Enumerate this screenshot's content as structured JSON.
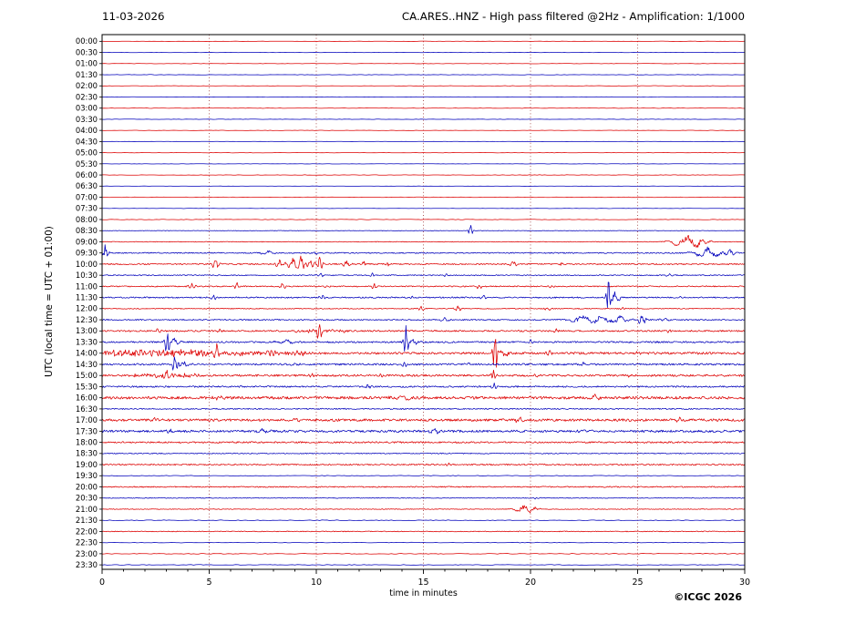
{
  "footer": {
    "credit": "©ICGC 2026"
  },
  "chart_data": {
    "type": "line",
    "subtype": "helicorder-seismogram",
    "date": "11-03-2026",
    "title": "CA.ARES..HNZ - High pass filtered @2Hz - Amplification: 1/1000",
    "xlabel": "time in minutes",
    "ylabel": "UTC (local time = UTC + 01:00)",
    "x_range": [
      0,
      30
    ],
    "x_ticks": [
      0,
      5,
      10,
      15,
      20,
      25,
      30
    ],
    "x_minor_tick_step": 1,
    "row_interval_minutes": 30,
    "grid": {
      "vertical_lines_at_minutes": [
        5,
        10,
        15,
        20,
        25
      ],
      "style": "dotted",
      "color": "#993333"
    },
    "colors": {
      "r": "#dd0000",
      "b": "#0000bb"
    },
    "amplitude_unit": "row_spacing",
    "rows": [
      {
        "t": "00:00",
        "c": "r",
        "n": 0.018
      },
      {
        "t": "00:30",
        "c": "b",
        "n": 0.015
      },
      {
        "t": "01:00",
        "c": "r",
        "n": 0.018
      },
      {
        "t": "01:30",
        "c": "b",
        "n": 0.015
      },
      {
        "t": "02:00",
        "c": "r",
        "n": 0.018
      },
      {
        "t": "02:30",
        "c": "b",
        "n": 0.015
      },
      {
        "t": "03:00",
        "c": "r",
        "n": 0.02
      },
      {
        "t": "03:30",
        "c": "b",
        "n": 0.015
      },
      {
        "t": "04:00",
        "c": "r",
        "n": 0.018
      },
      {
        "t": "04:30",
        "c": "b",
        "n": 0.015
      },
      {
        "t": "05:00",
        "c": "r",
        "n": 0.02
      },
      {
        "t": "05:30",
        "c": "b",
        "n": 0.015
      },
      {
        "t": "06:00",
        "c": "r",
        "n": 0.02
      },
      {
        "t": "06:30",
        "c": "b",
        "n": 0.015
      },
      {
        "t": "07:00",
        "c": "r",
        "n": 0.02
      },
      {
        "t": "07:30",
        "c": "b",
        "n": 0.015
      },
      {
        "t": "08:00",
        "c": "r",
        "n": 0.02
      },
      {
        "t": "08:30",
        "c": "b",
        "n": 0.02,
        "ev": [
          [
            17.2,
            0.45,
            0.08
          ]
        ]
      },
      {
        "t": "09:00",
        "c": "r",
        "n": 0.03,
        "ev": [
          [
            27.3,
            0.5,
            0.5
          ],
          [
            28.0,
            0.3,
            0.25
          ]
        ]
      },
      {
        "t": "09:30",
        "c": "b",
        "n": 0.05,
        "ev": [
          [
            0.15,
            0.85,
            0.1
          ],
          [
            7.8,
            0.15,
            0.3
          ],
          [
            9.9,
            0.2,
            0.15
          ],
          [
            28.3,
            0.45,
            0.45
          ],
          [
            29.3,
            0.25,
            0.2
          ]
        ]
      },
      {
        "t": "10:00",
        "c": "r",
        "n": 0.06,
        "ev": [
          [
            5.3,
            0.35,
            0.12
          ],
          [
            8.3,
            0.3,
            0.15
          ],
          [
            8.9,
            0.5,
            0.2
          ],
          [
            9.3,
            0.6,
            0.15
          ],
          [
            9.7,
            0.5,
            0.12
          ],
          [
            10.15,
            0.7,
            0.1
          ],
          [
            11.4,
            0.25,
            0.15
          ],
          [
            12.2,
            0.3,
            0.1
          ],
          [
            13.3,
            0.2,
            0.1
          ],
          [
            19.2,
            0.15,
            0.2
          ],
          [
            21.5,
            0.15,
            0.15
          ]
        ]
      },
      {
        "t": "10:30",
        "c": "b",
        "n": 0.045,
        "ev": [
          [
            10.2,
            0.2,
            0.1
          ],
          [
            12.6,
            0.18,
            0.1
          ],
          [
            16.1,
            0.15,
            0.1
          ],
          [
            26.5,
            0.12,
            0.15
          ]
        ]
      },
      {
        "t": "11:00",
        "c": "r",
        "n": 0.05,
        "ev": [
          [
            4.2,
            0.35,
            0.1
          ],
          [
            6.3,
            0.28,
            0.1
          ],
          [
            8.4,
            0.25,
            0.12
          ],
          [
            10.5,
            0.2,
            0.1
          ],
          [
            12.7,
            0.3,
            0.1
          ],
          [
            17.6,
            0.2,
            0.1
          ],
          [
            21.0,
            0.15,
            0.1
          ]
        ]
      },
      {
        "t": "11:30",
        "c": "b",
        "n": 0.06,
        "ev": [
          [
            5.2,
            0.2,
            0.1
          ],
          [
            10.3,
            0.25,
            0.1
          ],
          [
            14.5,
            0.2,
            0.1
          ],
          [
            17.8,
            0.25,
            0.1
          ],
          [
            23.65,
            1.7,
            0.07
          ],
          [
            23.95,
            0.45,
            0.2
          ],
          [
            27.0,
            0.2,
            0.1
          ]
        ]
      },
      {
        "t": "12:00",
        "c": "r",
        "n": 0.04,
        "ev": [
          [
            14.9,
            0.2,
            0.1
          ],
          [
            16.6,
            0.3,
            0.12
          ],
          [
            20.8,
            0.15,
            0.1
          ],
          [
            24.3,
            0.15,
            0.1
          ]
        ]
      },
      {
        "t": "12:30",
        "c": "b",
        "n": 0.05,
        "ev": [
          [
            16.0,
            0.2,
            0.15
          ],
          [
            22.4,
            0.3,
            0.5
          ],
          [
            23.3,
            0.35,
            0.4
          ],
          [
            24.2,
            0.4,
            0.3
          ],
          [
            25.2,
            0.5,
            0.12
          ],
          [
            26.3,
            0.2,
            0.15
          ]
        ]
      },
      {
        "t": "13:00",
        "c": "r",
        "n": 0.07,
        "segs": [
          [
            9.0,
            11.5,
            0.12
          ]
        ],
        "ev": [
          [
            2.6,
            0.2,
            0.1
          ],
          [
            5.5,
            0.15,
            0.1
          ],
          [
            10.15,
            0.95,
            0.1
          ],
          [
            21.2,
            0.2,
            0.1
          ],
          [
            26.5,
            0.15,
            0.1
          ]
        ]
      },
      {
        "t": "13:30",
        "c": "b",
        "n": 0.07,
        "ev": [
          [
            3.05,
            1.1,
            0.09
          ],
          [
            3.35,
            0.3,
            0.2
          ],
          [
            8.6,
            0.2,
            0.3
          ],
          [
            14.2,
            1.35,
            0.08
          ],
          [
            14.5,
            0.3,
            0.2
          ],
          [
            20.0,
            0.15,
            0.1
          ]
        ]
      },
      {
        "t": "14:00",
        "c": "r",
        "n": 0.1,
        "segs": [
          [
            0,
            5.0,
            0.28
          ],
          [
            5.0,
            9.5,
            0.16
          ]
        ],
        "ev": [
          [
            5.35,
            0.6,
            0.12
          ],
          [
            7.9,
            0.35,
            0.1
          ],
          [
            18.35,
            1.9,
            0.08
          ],
          [
            18.6,
            0.4,
            0.25
          ],
          [
            20.9,
            0.25,
            0.1
          ],
          [
            25.0,
            0.15,
            0.15
          ]
        ]
      },
      {
        "t": "14:30",
        "c": "b",
        "n": 0.08,
        "ev": [
          [
            3.4,
            0.8,
            0.09
          ],
          [
            3.8,
            0.25,
            0.2
          ],
          [
            9.0,
            0.15,
            0.15
          ],
          [
            14.1,
            0.35,
            0.1
          ],
          [
            17.1,
            0.15,
            0.1
          ],
          [
            22.5,
            0.12,
            0.2
          ]
        ]
      },
      {
        "t": "15:00",
        "c": "r",
        "n": 0.09,
        "segs": [
          [
            1.5,
            4.5,
            0.13
          ]
        ],
        "ev": [
          [
            3.0,
            0.45,
            0.12
          ],
          [
            9.8,
            0.2,
            0.1
          ],
          [
            13.0,
            0.15,
            0.1
          ],
          [
            18.3,
            0.8,
            0.08
          ],
          [
            20.2,
            0.2,
            0.1
          ],
          [
            24.5,
            0.15,
            0.1
          ]
        ]
      },
      {
        "t": "15:30",
        "c": "b",
        "n": 0.07,
        "ev": [
          [
            6.5,
            0.15,
            0.1
          ],
          [
            12.4,
            0.12,
            0.1
          ],
          [
            18.3,
            0.25,
            0.1
          ]
        ]
      },
      {
        "t": "16:00",
        "c": "r",
        "n": 0.12,
        "ev": [
          [
            5.5,
            0.2,
            0.2
          ],
          [
            14.0,
            0.18,
            0.3
          ],
          [
            23.0,
            0.18,
            0.2
          ]
        ]
      },
      {
        "t": "16:30",
        "c": "b",
        "n": 0.05
      },
      {
        "t": "17:00",
        "c": "r",
        "n": 0.11,
        "ev": [
          [
            2.5,
            0.2,
            0.2
          ],
          [
            9.0,
            0.2,
            0.2
          ],
          [
            19.5,
            0.18,
            0.2
          ],
          [
            27.0,
            0.15,
            0.2
          ]
        ]
      },
      {
        "t": "17:30",
        "c": "b",
        "n": 0.1,
        "ev": [
          [
            3.2,
            0.3,
            0.15
          ],
          [
            7.5,
            0.2,
            0.2
          ],
          [
            15.5,
            0.18,
            0.2
          ],
          [
            22.5,
            0.15,
            0.2
          ]
        ]
      },
      {
        "t": "18:00",
        "c": "r",
        "n": 0.07
      },
      {
        "t": "18:30",
        "c": "b",
        "n": 0.04
      },
      {
        "t": "19:00",
        "c": "r",
        "n": 0.06,
        "ev": [
          [
            16.2,
            0.12,
            0.1
          ]
        ]
      },
      {
        "t": "19:30",
        "c": "b",
        "n": 0.03
      },
      {
        "t": "20:00",
        "c": "r",
        "n": 0.05
      },
      {
        "t": "20:30",
        "c": "b",
        "n": 0.03,
        "ev": [
          [
            20.3,
            0.1,
            0.1
          ]
        ]
      },
      {
        "t": "21:00",
        "c": "r",
        "n": 0.03,
        "ev": [
          [
            19.7,
            0.3,
            0.35
          ],
          [
            20.15,
            0.2,
            0.2
          ]
        ]
      },
      {
        "t": "21:30",
        "c": "b",
        "n": 0.03
      },
      {
        "t": "22:00",
        "c": "r",
        "n": 0.035
      },
      {
        "t": "22:30",
        "c": "b",
        "n": 0.025
      },
      {
        "t": "23:00",
        "c": "r",
        "n": 0.03
      },
      {
        "t": "23:30",
        "c": "b",
        "n": 0.025
      }
    ]
  }
}
